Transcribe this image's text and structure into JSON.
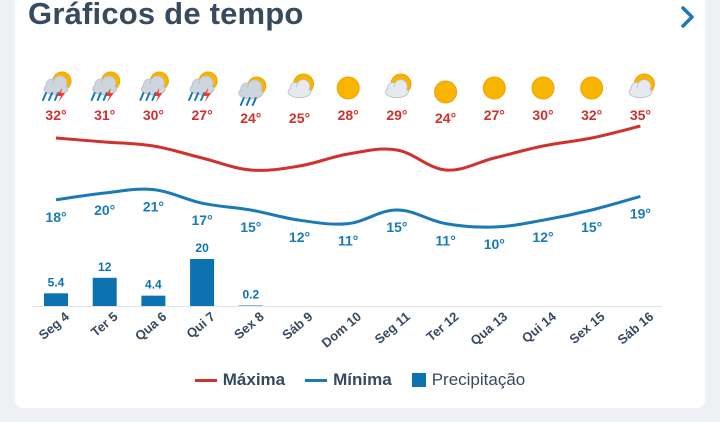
{
  "header": {
    "title": "Gráficos de tempo",
    "next_icon": "chevron-right-icon"
  },
  "colors": {
    "max": "#d0312d",
    "min": "#1a7ab8",
    "precip": "#0d72b0",
    "title": "#374a5e"
  },
  "days": [
    {
      "label": "Seg 4",
      "icon": "sun-cloud-storm-icon"
    },
    {
      "label": "Ter 5",
      "icon": "sun-cloud-storm-icon"
    },
    {
      "label": "Qua 6",
      "icon": "sun-cloud-storm-icon"
    },
    {
      "label": "Qui 7",
      "icon": "sun-cloud-storm-icon"
    },
    {
      "label": "Sex 8",
      "icon": "sun-cloud-rain-icon"
    },
    {
      "label": "Sáb 9",
      "icon": "sun-cloud-icon"
    },
    {
      "label": "Dom 10",
      "icon": "sun-icon"
    },
    {
      "label": "Seg 11",
      "icon": "sun-cloud-icon"
    },
    {
      "label": "Ter 12",
      "icon": "sun-icon"
    },
    {
      "label": "Qua 13",
      "icon": "sun-icon"
    },
    {
      "label": "Qui 14",
      "icon": "sun-icon"
    },
    {
      "label": "Sex 15",
      "icon": "sun-icon"
    },
    {
      "label": "Sáb 16",
      "icon": "sun-cloud-icon"
    }
  ],
  "chart_data": {
    "type": "line",
    "categories": [
      "Seg 4",
      "Ter 5",
      "Qua 6",
      "Qui 7",
      "Sex 8",
      "Sáb 9",
      "Dom 10",
      "Seg 11",
      "Ter 12",
      "Qua 13",
      "Qui 14",
      "Sex 15",
      "Sáb 16"
    ],
    "series": [
      {
        "name": "Máxima",
        "values": [
          32,
          31,
          30,
          27,
          24,
          25,
          28,
          29,
          24,
          27,
          30,
          32,
          35
        ],
        "labels": [
          "32°",
          "31°",
          "30°",
          "27°",
          "24°",
          "25°",
          "28°",
          "29°",
          "24°",
          "27°",
          "30°",
          "32°",
          "35°"
        ]
      },
      {
        "name": "Mínima",
        "values": [
          18,
          20,
          21,
          17,
          15,
          12,
          11,
          15,
          11,
          10,
          12,
          15,
          19
        ],
        "labels": [
          "18°",
          "20°",
          "21°",
          "17°",
          "15°",
          "12°",
          "11°",
          "15°",
          "11°",
          "10°",
          "12°",
          "15°",
          "19°"
        ]
      },
      {
        "name": "Precipitação",
        "type": "bar",
        "values": [
          5.4,
          12,
          4.4,
          20,
          0.2,
          0,
          0,
          0,
          0,
          0,
          0,
          0,
          0
        ],
        "labels": [
          "5.4",
          "12",
          "4.4",
          "20",
          "0.2",
          "",
          "",
          "",
          "",
          "",
          "",
          "",
          ""
        ]
      }
    ],
    "legend_position": "bottom"
  },
  "legend": {
    "max": "Máxima",
    "min": "Mínima",
    "precip": "Precipitação"
  }
}
